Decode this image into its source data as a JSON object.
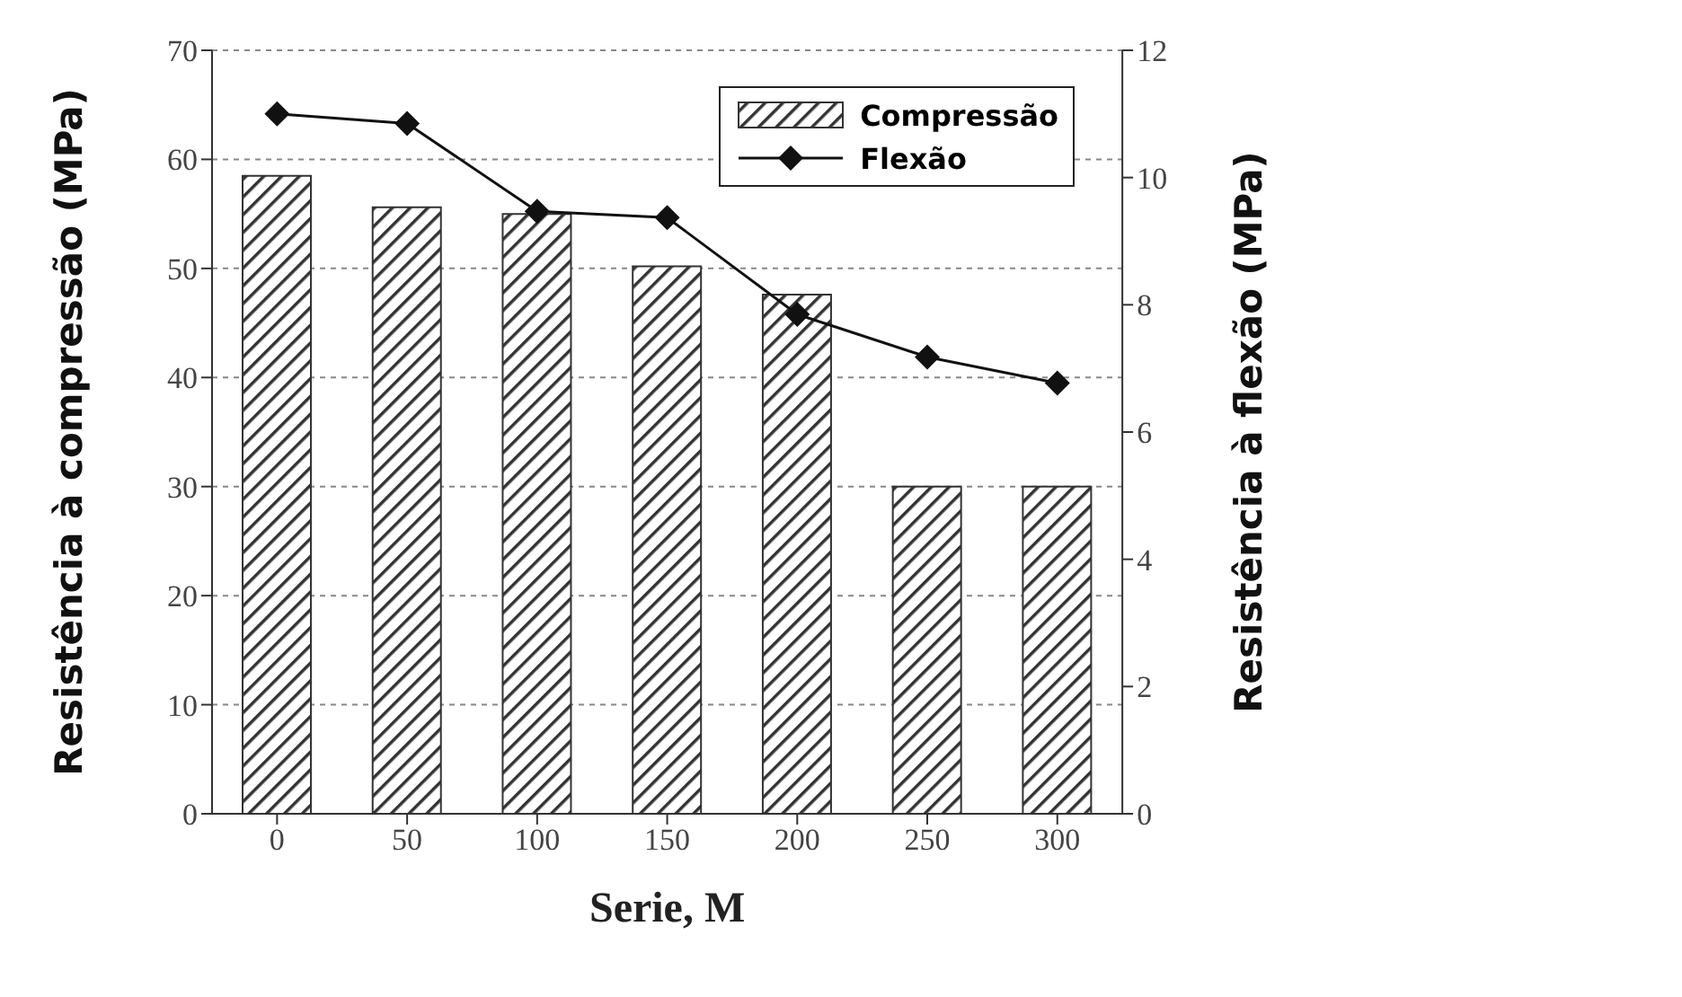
{
  "chart_data": {
    "type": "bar",
    "xlabel": "Serie, M",
    "ylabel": "Resistência à  compressão (MPa)",
    "y2label": "Resistência à flexão (MPa)",
    "categories": [
      "0",
      "50",
      "100",
      "150",
      "200",
      "250",
      "300"
    ],
    "series": [
      {
        "name": "Compressão",
        "color": "#333333",
        "values": [
          58.5,
          55.6,
          55,
          50.2,
          47.6,
          30,
          30
        ]
      },
      {
        "name": "Flexão",
        "type": "line",
        "axis": "y2",
        "color": "#111111",
        "marker": "diamond",
        "values": [
          11,
          10.85,
          9.47,
          9.37,
          7.85,
          7.18,
          6.77
        ]
      }
    ],
    "ylim": [
      0,
      70
    ],
    "yticks": [
      0,
      10,
      20,
      30,
      40,
      50,
      60,
      70
    ],
    "y2lim": [
      0,
      12
    ],
    "y2ticks": [
      0,
      2,
      4,
      6,
      8,
      10,
      12
    ],
    "grid": "y",
    "legend": "top right"
  }
}
